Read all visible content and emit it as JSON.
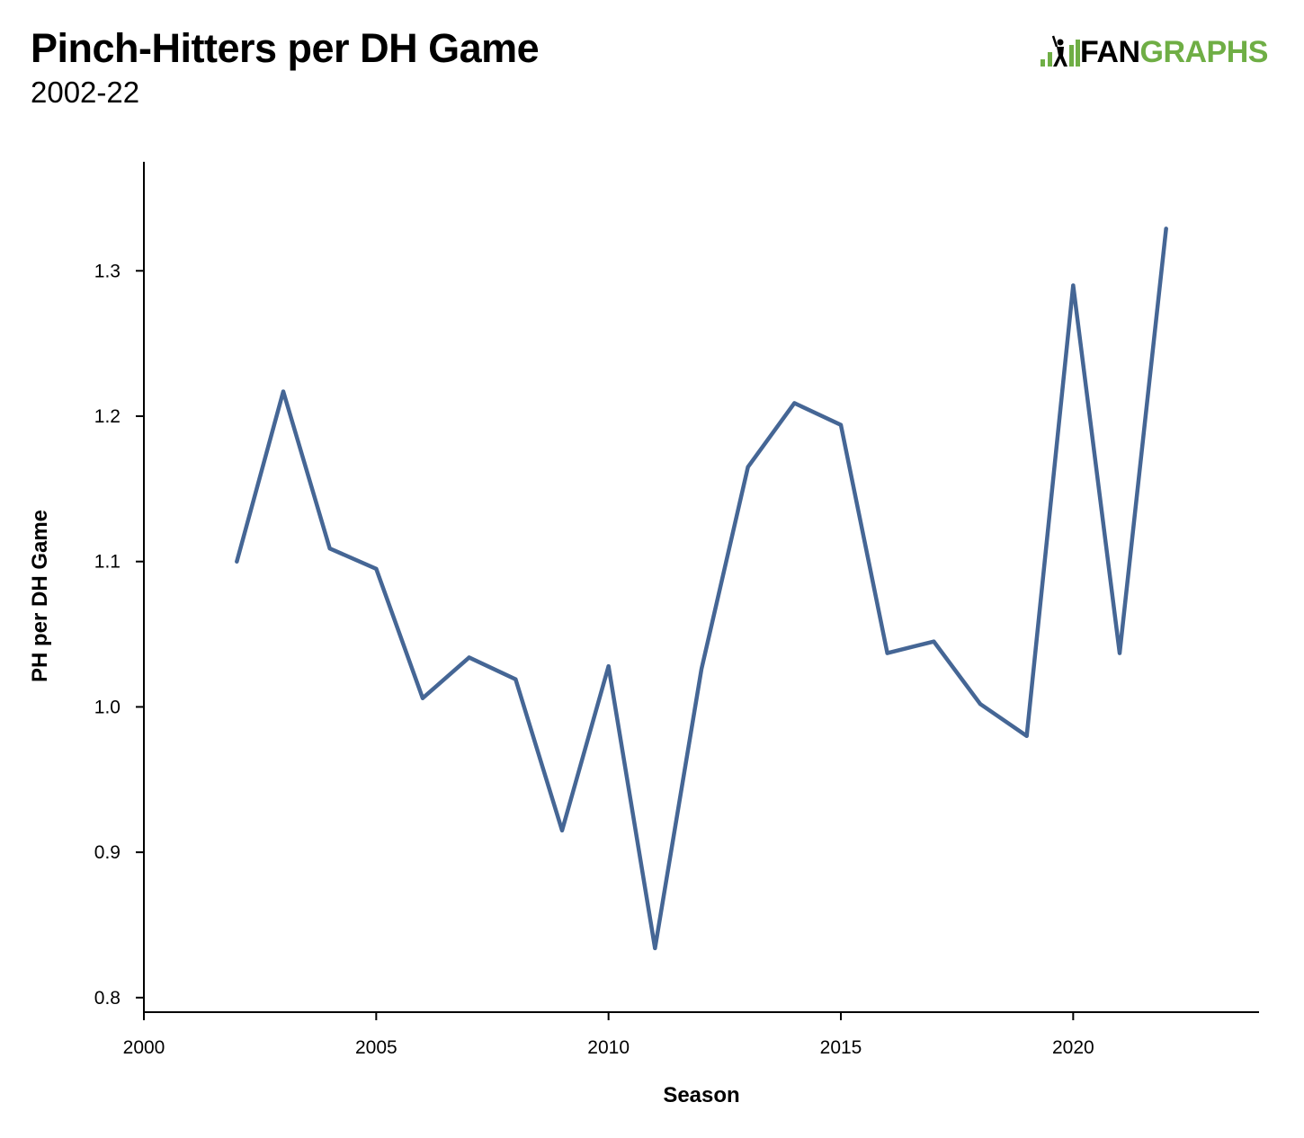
{
  "header": {
    "title": "Pinch-Hitters per DH Game",
    "subtitle": "2002-22"
  },
  "logo": {
    "fan_text": "FAN",
    "graphs_text": "GRAPHS",
    "brand_green": "#6fae45",
    "icon": "batter-bars-icon"
  },
  "chart_data": {
    "type": "line",
    "xlabel": "Season",
    "ylabel": "PH per DH Game",
    "xlim": [
      2000,
      2024
    ],
    "ylim": [
      0.79,
      1.375
    ],
    "x_ticks": [
      2000,
      2005,
      2010,
      2015,
      2020
    ],
    "y_ticks": [
      0.8,
      0.9,
      1.0,
      1.1,
      1.2,
      1.3
    ],
    "y_tick_labels": [
      "0.8",
      "0.9",
      "1.0",
      "1.1",
      "1.2",
      "1.3"
    ],
    "grid": false,
    "line_color": "#456695",
    "series": [
      {
        "x": [
          2002,
          2003,
          2004,
          2005,
          2006,
          2007,
          2008,
          2009,
          2010,
          2011,
          2012,
          2013,
          2014,
          2015,
          2016,
          2017,
          2018,
          2019,
          2020,
          2021,
          2022
        ],
        "values": [
          1.1,
          1.217,
          1.109,
          1.095,
          1.006,
          1.034,
          1.019,
          0.915,
          1.028,
          0.834,
          1.026,
          1.165,
          1.209,
          1.194,
          1.037,
          1.045,
          1.002,
          0.98,
          1.29,
          1.037,
          1.329
        ]
      }
    ]
  }
}
